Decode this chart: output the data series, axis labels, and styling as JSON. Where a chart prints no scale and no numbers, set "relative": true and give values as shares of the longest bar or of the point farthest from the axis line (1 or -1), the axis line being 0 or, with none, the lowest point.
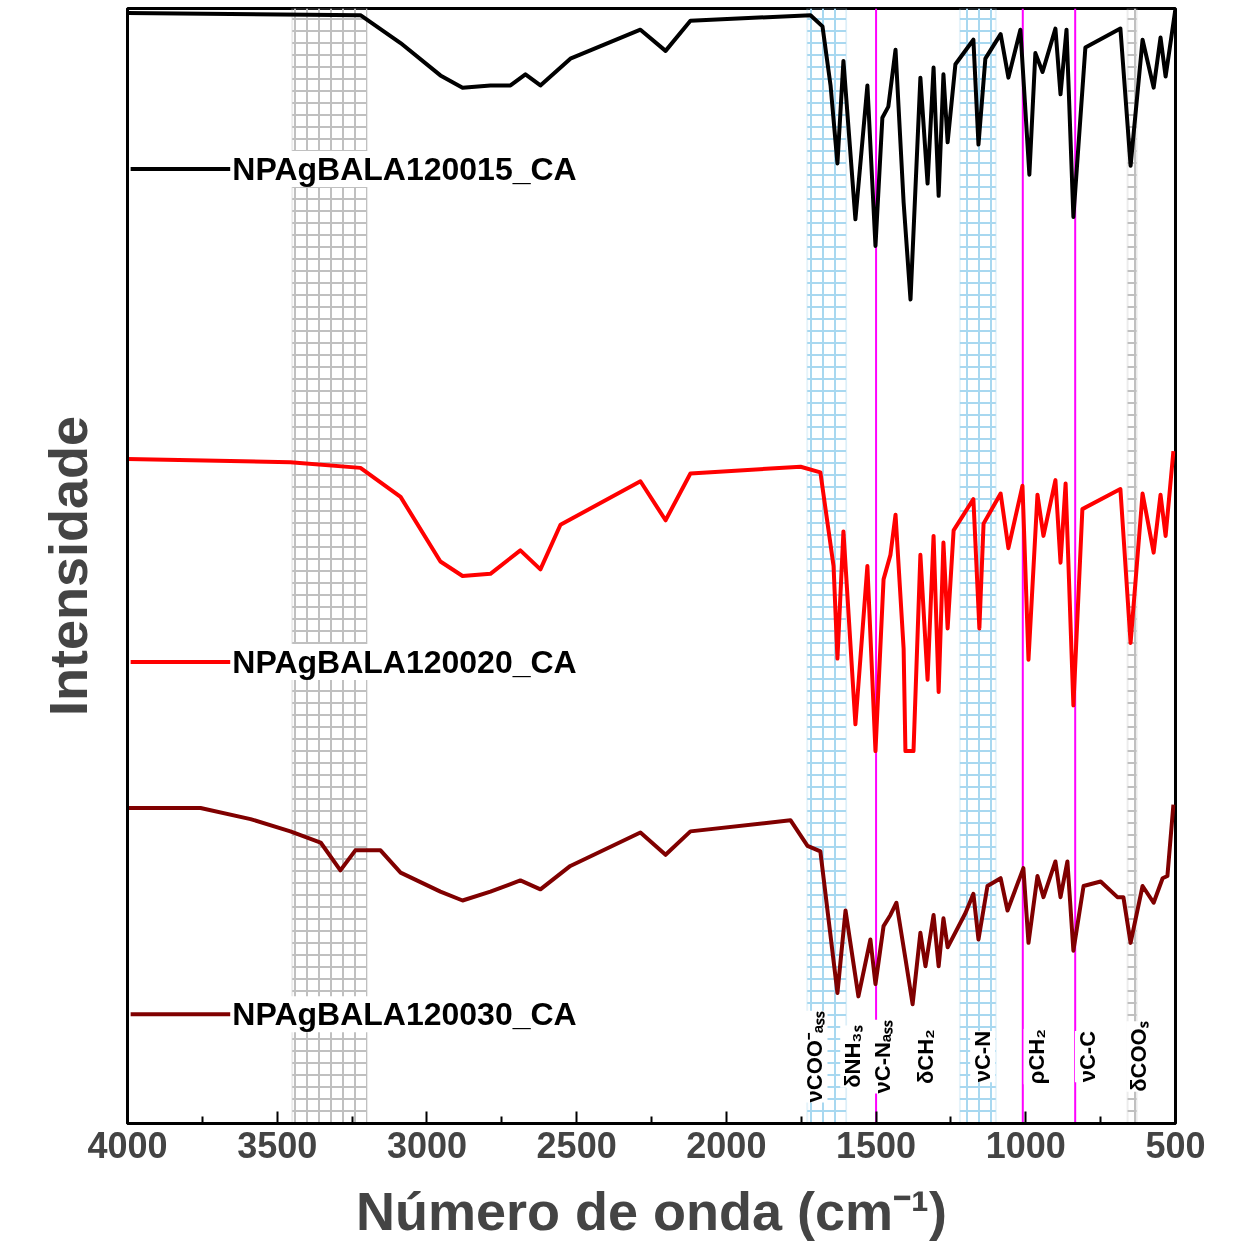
{
  "chart_data": {
    "type": "line",
    "relative": true,
    "xlabel": "Número de onda (cm⁻¹)",
    "ylabel": "Intensidade",
    "xlim": [
      4000,
      500
    ],
    "xticks": [
      4000,
      3500,
      3000,
      2500,
      2000,
      1500,
      1000,
      500
    ],
    "grid": false,
    "bands": [
      {
        "axis": "x",
        "from": 3450,
        "to": 3200,
        "color": "#c0c0c0"
      },
      {
        "axis": "x",
        "from": 1730,
        "to": 1600,
        "color": "#a8d8f0"
      },
      {
        "axis": "x",
        "from": 1220,
        "to": 1100,
        "color": "#a8d8f0"
      },
      {
        "axis": "x",
        "from": 660,
        "to": 630,
        "color": "#c0c0c0"
      }
    ],
    "ref_lines": [
      {
        "axis": "x",
        "value": 1500,
        "color": "#ff00ff"
      },
      {
        "axis": "x",
        "value": 1010,
        "color": "#ff00ff"
      },
      {
        "axis": "x",
        "value": 835,
        "color": "#ff00ff"
      }
    ],
    "annotations": [
      "νCOO⁻ₐₛₛ",
      "δNH₃ₛ",
      "νC-Nₐₛₛ",
      "δCH₂",
      "νC-N",
      "ρCH₂",
      "νC-C",
      "δCOOₛ"
    ],
    "legend": "left",
    "series": [
      {
        "name": "NPAgBALA120015_CA",
        "color": "#000000",
        "x": [
          4000,
          3222,
          3088,
          2955,
          2881,
          2788,
          2721,
          2671,
          2621,
          2521,
          2287,
          2203,
          2120,
          1719,
          1679,
          1652,
          1629,
          1609,
          1569,
          1529,
          1502,
          1479,
          1459,
          1435,
          1408,
          1385,
          1352,
          1328,
          1308,
          1291,
          1275,
          1261,
          1235,
          1175,
          1158,
          1135,
          1084,
          1058,
          1018,
          988,
          968,
          944,
          901,
          884,
          864,
          841,
          801,
          684,
          650,
          610,
          573,
          550,
          533,
          500
        ],
        "values": [
          0.996,
          0.994,
          0.969,
          0.94,
          0.929,
          0.931,
          0.931,
          0.941,
          0.931,
          0.955,
          0.981,
          0.962,
          0.989,
          0.994,
          0.984,
          0.931,
          0.861,
          0.953,
          0.811,
          0.931,
          0.787,
          0.902,
          0.912,
          0.963,
          0.826,
          0.739,
          0.938,
          0.843,
          0.947,
          0.832,
          0.941,
          0.88,
          0.95,
          0.972,
          0.878,
          0.955,
          0.977,
          0.938,
          0.981,
          0.851,
          0.96,
          0.943,
          0.982,
          0.923,
          0.981,
          0.813,
          0.965,
          0.982,
          0.859,
          0.972,
          0.929,
          0.974,
          0.939,
          1.0
        ]
      },
      {
        "name": "NPAgBALA120020_CA",
        "color": "#ff0000",
        "x": [
          4000,
          3456,
          3222,
          3088,
          2955,
          2881,
          2788,
          2688,
          2621,
          2554,
          2287,
          2203,
          2120,
          1752,
          1686,
          1642,
          1629,
          1609,
          1569,
          1529,
          1502,
          1475,
          1452,
          1435,
          1408,
          1402,
          1375,
          1352,
          1328,
          1308,
          1291,
          1275,
          1261,
          1241,
          1175,
          1155,
          1141,
          1084,
          1058,
          1011,
          991,
          961,
          941,
          901,
          884,
          867,
          841,
          811,
          684,
          650,
          610,
          573,
          550,
          533,
          507
        ],
        "values": [
          0.596,
          0.593,
          0.588,
          0.562,
          0.504,
          0.491,
          0.493,
          0.514,
          0.497,
          0.537,
          0.576,
          0.541,
          0.583,
          0.589,
          0.584,
          0.5,
          0.417,
          0.531,
          0.358,
          0.5,
          0.334,
          0.488,
          0.51,
          0.546,
          0.426,
          0.334,
          0.334,
          0.51,
          0.398,
          0.527,
          0.387,
          0.521,
          0.444,
          0.532,
          0.56,
          0.444,
          0.538,
          0.565,
          0.516,
          0.572,
          0.416,
          0.564,
          0.527,
          0.577,
          0.503,
          0.574,
          0.375,
          0.551,
          0.569,
          0.431,
          0.565,
          0.512,
          0.564,
          0.527,
          0.603
        ]
      },
      {
        "name": "NPAgBALA120030_CA",
        "color": "#800000",
        "x": [
          4000,
          3756,
          3589,
          3456,
          3355,
          3289,
          3239,
          3155,
          3088,
          2955,
          2881,
          2788,
          2688,
          2621,
          2521,
          2287,
          2203,
          2120,
          1786,
          1729,
          1686,
          1629,
          1602,
          1559,
          1519,
          1502,
          1475,
          1452,
          1432,
          1402,
          1378,
          1352,
          1335,
          1308,
          1291,
          1275,
          1261,
          1201,
          1175,
          1158,
          1128,
          1084,
          1061,
          1008,
          991,
          961,
          941,
          901,
          884,
          861,
          841,
          807,
          750,
          694,
          674,
          650,
          610,
          573,
          543,
          527,
          507
        ],
        "values": [
          0.283,
          0.283,
          0.273,
          0.262,
          0.252,
          0.227,
          0.245,
          0.245,
          0.225,
          0.208,
          0.2,
          0.208,
          0.218,
          0.21,
          0.231,
          0.261,
          0.241,
          0.262,
          0.272,
          0.249,
          0.244,
          0.117,
          0.191,
          0.114,
          0.165,
          0.125,
          0.177,
          0.187,
          0.198,
          0.148,
          0.107,
          0.171,
          0.141,
          0.187,
          0.141,
          0.184,
          0.158,
          0.189,
          0.206,
          0.165,
          0.213,
          0.22,
          0.191,
          0.229,
          0.162,
          0.222,
          0.203,
          0.235,
          0.203,
          0.235,
          0.155,
          0.213,
          0.217,
          0.203,
          0.203,
          0.162,
          0.213,
          0.198,
          0.22,
          0.222,
          0.286
        ]
      }
    ]
  }
}
